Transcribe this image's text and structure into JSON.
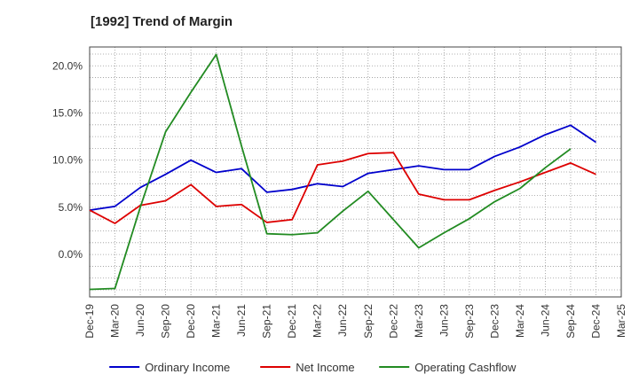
{
  "chart_data": {
    "type": "line",
    "title": "[1992]  Trend of Margin",
    "x": [
      "Dec-19",
      "Mar-20",
      "Jun-20",
      "Sep-20",
      "Dec-20",
      "Mar-21",
      "Jun-21",
      "Sep-21",
      "Dec-21",
      "Mar-22",
      "Jun-22",
      "Sep-22",
      "Dec-22",
      "Mar-23",
      "Jun-23",
      "Sep-23",
      "Dec-23",
      "Mar-24",
      "Jun-24",
      "Sep-24",
      "Dec-24",
      "Mar-25"
    ],
    "y_ticks": [
      "0.0%",
      "5.0%",
      "10.0%",
      "15.0%",
      "20.0%"
    ],
    "ylim": [
      -4.5,
      22.0
    ],
    "grid": true,
    "legend_position": "bottom",
    "series": [
      {
        "name": "Ordinary Income",
        "color": "#0000cc",
        "values": [
          4.7,
          5.1,
          7.1,
          8.5,
          10.0,
          8.7,
          9.1,
          6.6,
          6.9,
          7.5,
          7.2,
          8.6,
          9.0,
          9.4,
          9.0,
          9.0,
          10.4,
          11.4,
          12.7,
          13.7,
          11.9,
          null
        ]
      },
      {
        "name": "Net Income",
        "color": "#dd0000",
        "values": [
          4.7,
          3.3,
          5.2,
          5.7,
          7.4,
          5.1,
          5.3,
          3.4,
          3.7,
          9.5,
          9.9,
          10.7,
          10.8,
          6.4,
          5.8,
          5.8,
          6.8,
          7.7,
          8.7,
          9.7,
          8.5,
          null
        ]
      },
      {
        "name": "Operating Cashflow",
        "color": "#228b22",
        "values": [
          -3.7,
          -3.6,
          5.0,
          13.0,
          17.2,
          21.2,
          11.5,
          2.2,
          2.1,
          2.3,
          4.6,
          6.7,
          3.7,
          0.7,
          2.3,
          3.8,
          5.6,
          7.0,
          9.2,
          11.2,
          null,
          null
        ]
      }
    ]
  }
}
